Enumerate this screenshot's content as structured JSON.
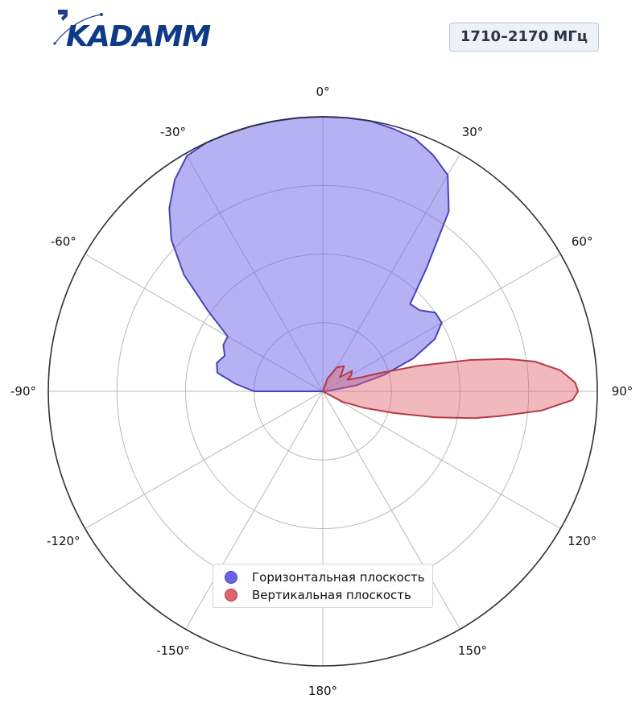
{
  "brand": {
    "name": "KADAMM",
    "color": "#0f3a86",
    "accent": "#1e3f8a"
  },
  "band_label": "1710–2170 МГц",
  "chart_data": {
    "type": "polar-area",
    "theta_direction": "clockwise",
    "theta_zero": "top",
    "angle_ticks": [
      "0°",
      "30°",
      "60°",
      "90°",
      "120°",
      "150°",
      "180°",
      "-150°",
      "-120°",
      "-90°",
      "-60°",
      "-30°"
    ],
    "radial_grid": [
      0.25,
      0.5,
      0.75,
      1.0
    ],
    "radial_tick_labels": false,
    "grid": true,
    "legend_placement": "lower-center",
    "series": [
      {
        "name": "Горизонтальная плоскость",
        "color": "#6b63e8",
        "edge": "#4b44b8",
        "angles": [
          -90,
          -85,
          -80,
          -75,
          -70,
          -65,
          -60,
          -55,
          -50,
          -45,
          -40,
          -35,
          -30,
          -25,
          -20,
          -15,
          -10,
          -5,
          0,
          5,
          10,
          15,
          20,
          25,
          30,
          35,
          40,
          45,
          50,
          55,
          60,
          65,
          70,
          75,
          80,
          85,
          90
        ],
        "values": [
          0.25,
          0.32,
          0.39,
          0.4,
          0.38,
          0.4,
          0.4,
          0.51,
          0.66,
          0.78,
          0.87,
          0.94,
          0.99,
          1.0,
          1.0,
          1.0,
          1.0,
          1.0,
          1.0,
          1.0,
          1.0,
          0.99,
          0.98,
          0.95,
          0.91,
          0.8,
          0.59,
          0.45,
          0.46,
          0.5,
          0.5,
          0.45,
          0.35,
          0.23,
          0.12,
          0.02,
          0.0
        ]
      },
      {
        "name": "Вертикальная плоскость",
        "color": "#e0636d",
        "edge": "#b53a45",
        "angles": [
          0,
          20,
          30,
          40,
          45,
          50,
          55,
          60,
          65,
          70,
          72,
          75,
          78,
          80,
          82,
          85,
          88,
          90,
          92,
          95,
          98,
          100,
          103,
          107,
          112,
          118,
          125
        ],
        "values": [
          0.0,
          0.05,
          0.1,
          0.12,
          0.1,
          0.08,
          0.13,
          0.12,
          0.1,
          0.15,
          0.21,
          0.36,
          0.55,
          0.68,
          0.78,
          0.87,
          0.92,
          0.93,
          0.91,
          0.8,
          0.65,
          0.56,
          0.42,
          0.27,
          0.16,
          0.08,
          0.0
        ]
      }
    ]
  }
}
